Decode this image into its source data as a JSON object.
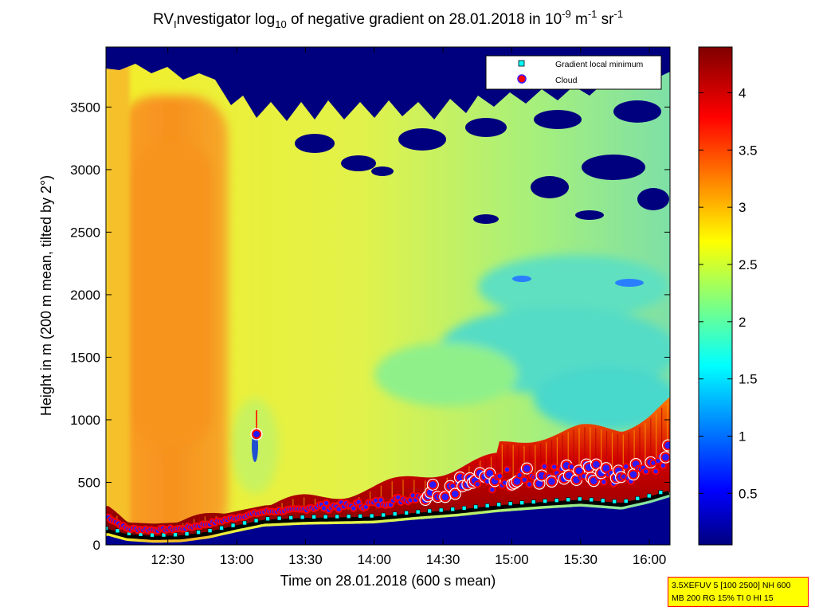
{
  "chart_data": {
    "type": "heatmap",
    "title": {
      "prefix": "RV",
      "prefix_sub": "I",
      "mid": "nvestigator log",
      "mid_sub": "10",
      "rest": " of negative gradient on 28.01.2018 in 10",
      "sup1": "-9",
      "unit1": " m",
      "sup2": "-1",
      "unit2": " sr",
      "sup3": "-1"
    },
    "xlabel": "Time on 28.01.2018 (600 s mean)",
    "ylabel": "Height in m (200 m mean, tilted by 2°)",
    "x_ticks": [
      "12:30",
      "13:00",
      "13:30",
      "14:00",
      "14:30",
      "15:00",
      "15:30",
      "16:00"
    ],
    "x_tick_hours": [
      12.5,
      13.0,
      13.5,
      14.0,
      14.5,
      15.0,
      15.5,
      16.0
    ],
    "xlim_hours": [
      12.05,
      16.15
    ],
    "y_ticks": [
      0,
      500,
      1000,
      1500,
      2000,
      2500,
      3000,
      3500
    ],
    "ylim": [
      0,
      3980
    ],
    "colorbar": {
      "ticks": [
        0.5,
        1,
        1.5,
        2,
        2.5,
        3,
        3.5,
        4
      ],
      "tick_labels": [
        "0.5",
        "1",
        "1.5",
        "2",
        "2.5",
        "3",
        "3.5",
        "4"
      ],
      "range": [
        0.05,
        4.4
      ],
      "colormap": "jet"
    },
    "legend": {
      "placement": "top-right",
      "entries": [
        {
          "label": "Gradient local minimum",
          "marker": "square",
          "color": "#00ffff"
        },
        {
          "label": "Cloud",
          "marker": "circle",
          "color": "#ff0000"
        }
      ]
    },
    "gradient_minimum_heights": {
      "hours": [
        12.07,
        12.2,
        12.4,
        12.6,
        12.8,
        13.0,
        13.2,
        13.5,
        13.8,
        14.0,
        14.3,
        14.6,
        14.9,
        15.2,
        15.5,
        15.8,
        16.0,
        16.15
      ],
      "heights": [
        110,
        70,
        55,
        60,
        90,
        140,
        185,
        200,
        205,
        210,
        240,
        265,
        300,
        325,
        345,
        320,
        370,
        420
      ]
    },
    "cloud_base_heights": {
      "hours": [
        12.07,
        12.2,
        12.4,
        12.6,
        12.8,
        13.0,
        13.2,
        13.5,
        13.8,
        14.0,
        14.3,
        14.6,
        14.9,
        15.2,
        15.5,
        15.8,
        16.0,
        16.15
      ],
      "heights": [
        210,
        120,
        110,
        120,
        160,
        210,
        255,
        275,
        280,
        300,
        350,
        390,
        440,
        480,
        500,
        470,
        560,
        650
      ]
    }
  },
  "info_box": {
    "line1": "3.5XEFUV 5 [100 2500] NH 600",
    "line2": "MB 200 RG 15% TI 0 HI 15"
  }
}
